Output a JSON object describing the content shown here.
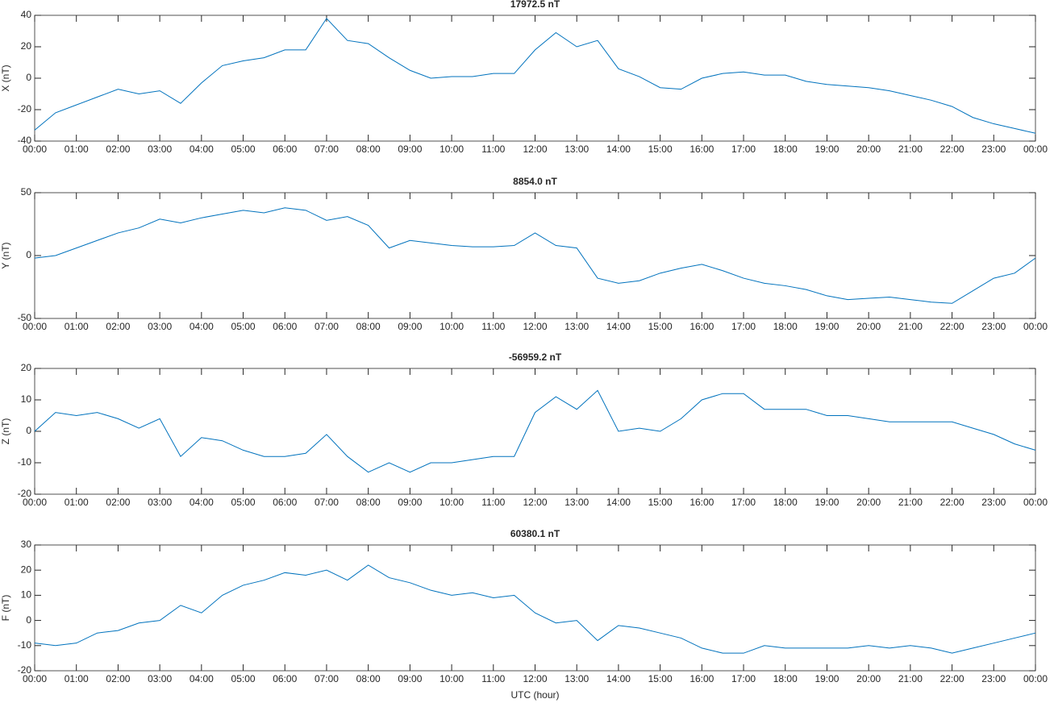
{
  "chart_data": [
    {
      "type": "line",
      "title": "17972.5 nT",
      "ylabel": "X (nT)",
      "color": "#0072bd",
      "x": [
        0,
        0.5,
        1,
        1.5,
        2,
        2.5,
        3,
        3.5,
        4,
        4.5,
        5,
        5.5,
        6,
        6.5,
        7,
        7.5,
        8,
        8.5,
        9,
        9.5,
        10,
        10.5,
        11,
        11.5,
        12,
        12.5,
        13,
        13.5,
        14,
        14.5,
        15,
        15.5,
        16,
        16.5,
        17,
        17.5,
        18,
        18.5,
        19,
        19.5,
        20,
        20.5,
        21,
        21.5,
        22,
        22.5,
        23,
        23.5,
        24
      ],
      "values": [
        -33,
        -22,
        -17,
        -12,
        -7,
        -10,
        -8,
        -16,
        -3,
        8,
        11,
        13,
        18,
        18,
        38,
        24,
        22,
        13,
        5,
        0,
        1,
        1,
        3,
        3,
        18,
        29,
        20,
        24,
        6,
        1,
        -6,
        -7,
        0,
        3,
        4,
        2,
        2,
        -2,
        -4,
        -5,
        -6,
        -8,
        -11,
        -14,
        -18,
        -25,
        -29,
        -32,
        -35
      ],
      "xlim": [
        0,
        24
      ],
      "xticks": [
        {
          "value": 0,
          "label": "00:00"
        },
        {
          "value": 1,
          "label": "01:00"
        },
        {
          "value": 2,
          "label": "02:00"
        },
        {
          "value": 3,
          "label": "03:00"
        },
        {
          "value": 4,
          "label": "04:00"
        },
        {
          "value": 5,
          "label": "05:00"
        },
        {
          "value": 6,
          "label": "06:00"
        },
        {
          "value": 7,
          "label": "07:00"
        },
        {
          "value": 8,
          "label": "08:00"
        },
        {
          "value": 9,
          "label": "09:00"
        },
        {
          "value": 10,
          "label": "10:00"
        },
        {
          "value": 11,
          "label": "11:00"
        },
        {
          "value": 12,
          "label": "12:00"
        },
        {
          "value": 13,
          "label": "13:00"
        },
        {
          "value": 14,
          "label": "14:00"
        },
        {
          "value": 15,
          "label": "15:00"
        },
        {
          "value": 16,
          "label": "16:00"
        },
        {
          "value": 17,
          "label": "17:00"
        },
        {
          "value": 18,
          "label": "18:00"
        },
        {
          "value": 19,
          "label": "19:00"
        },
        {
          "value": 20,
          "label": "20:00"
        },
        {
          "value": 21,
          "label": "21:00"
        },
        {
          "value": 22,
          "label": "22:00"
        },
        {
          "value": 23,
          "label": "23:00"
        },
        {
          "value": 24,
          "label": "00:00"
        }
      ],
      "ylim": [
        -40,
        40
      ],
      "yticks": [
        -40,
        -20,
        0,
        20,
        40
      ],
      "grid": false
    },
    {
      "type": "line",
      "title": "8854.0 nT",
      "ylabel": "Y (nT)",
      "color": "#0072bd",
      "x": [
        0,
        0.5,
        1,
        1.5,
        2,
        2.5,
        3,
        3.5,
        4,
        4.5,
        5,
        5.5,
        6,
        6.5,
        7,
        7.5,
        8,
        8.5,
        9,
        9.5,
        10,
        10.5,
        11,
        11.5,
        12,
        12.5,
        13,
        13.5,
        14,
        14.5,
        15,
        15.5,
        16,
        16.5,
        17,
        17.5,
        18,
        18.5,
        19,
        19.5,
        20,
        20.5,
        21,
        21.5,
        22,
        22.5,
        23,
        23.5,
        24
      ],
      "values": [
        -2,
        0,
        6,
        12,
        18,
        22,
        29,
        26,
        30,
        33,
        36,
        34,
        38,
        36,
        28,
        31,
        24,
        6,
        12,
        10,
        8,
        7,
        7,
        8,
        18,
        8,
        6,
        -18,
        -22,
        -20,
        -14,
        -10,
        -7,
        -12,
        -18,
        -22,
        -24,
        -27,
        -32,
        -35,
        -34,
        -33,
        -35,
        -37,
        -38,
        -28,
        -18,
        -14,
        -2
      ],
      "xlim": [
        0,
        24
      ],
      "xticks": [
        {
          "value": 0,
          "label": "00:00"
        },
        {
          "value": 1,
          "label": "01:00"
        },
        {
          "value": 2,
          "label": "02:00"
        },
        {
          "value": 3,
          "label": "03:00"
        },
        {
          "value": 4,
          "label": "04:00"
        },
        {
          "value": 5,
          "label": "05:00"
        },
        {
          "value": 6,
          "label": "06:00"
        },
        {
          "value": 7,
          "label": "07:00"
        },
        {
          "value": 8,
          "label": "08:00"
        },
        {
          "value": 9,
          "label": "09:00"
        },
        {
          "value": 10,
          "label": "10:00"
        },
        {
          "value": 11,
          "label": "11:00"
        },
        {
          "value": 12,
          "label": "12:00"
        },
        {
          "value": 13,
          "label": "13:00"
        },
        {
          "value": 14,
          "label": "14:00"
        },
        {
          "value": 15,
          "label": "15:00"
        },
        {
          "value": 16,
          "label": "16:00"
        },
        {
          "value": 17,
          "label": "17:00"
        },
        {
          "value": 18,
          "label": "18:00"
        },
        {
          "value": 19,
          "label": "19:00"
        },
        {
          "value": 20,
          "label": "20:00"
        },
        {
          "value": 21,
          "label": "21:00"
        },
        {
          "value": 22,
          "label": "22:00"
        },
        {
          "value": 23,
          "label": "23:00"
        },
        {
          "value": 24,
          "label": "00:00"
        }
      ],
      "ylim": [
        -50,
        50
      ],
      "yticks": [
        -50,
        0,
        50
      ],
      "grid": false
    },
    {
      "type": "line",
      "title": "-56959.2 nT",
      "ylabel": "Z (nT)",
      "color": "#0072bd",
      "x": [
        0,
        0.5,
        1,
        1.5,
        2,
        2.5,
        3,
        3.5,
        4,
        4.5,
        5,
        5.5,
        6,
        6.5,
        7,
        7.5,
        8,
        8.5,
        9,
        9.5,
        10,
        10.5,
        11,
        11.5,
        12,
        12.5,
        13,
        13.5,
        14,
        14.5,
        15,
        15.5,
        16,
        16.5,
        17,
        17.5,
        18,
        18.5,
        19,
        19.5,
        20,
        20.5,
        21,
        21.5,
        22,
        22.5,
        23,
        23.5,
        24
      ],
      "values": [
        0,
        6,
        5,
        6,
        4,
        1,
        4,
        -8,
        -2,
        -3,
        -6,
        -8,
        -8,
        -7,
        -1,
        -8,
        -13,
        -10,
        -13,
        -10,
        -10,
        -9,
        -8,
        -8,
        6,
        11,
        7,
        13,
        0,
        1,
        0,
        4,
        10,
        12,
        12,
        7,
        7,
        7,
        5,
        5,
        4,
        3,
        3,
        3,
        3,
        1,
        -1,
        -4,
        -6
      ],
      "xlim": [
        0,
        24
      ],
      "xticks": [
        {
          "value": 0,
          "label": "00:00"
        },
        {
          "value": 1,
          "label": "01:00"
        },
        {
          "value": 2,
          "label": "02:00"
        },
        {
          "value": 3,
          "label": "03:00"
        },
        {
          "value": 4,
          "label": "04:00"
        },
        {
          "value": 5,
          "label": "05:00"
        },
        {
          "value": 6,
          "label": "06:00"
        },
        {
          "value": 7,
          "label": "07:00"
        },
        {
          "value": 8,
          "label": "08:00"
        },
        {
          "value": 9,
          "label": "09:00"
        },
        {
          "value": 10,
          "label": "10:00"
        },
        {
          "value": 11,
          "label": "11:00"
        },
        {
          "value": 12,
          "label": "12:00"
        },
        {
          "value": 13,
          "label": "13:00"
        },
        {
          "value": 14,
          "label": "14:00"
        },
        {
          "value": 15,
          "label": "15:00"
        },
        {
          "value": 16,
          "label": "16:00"
        },
        {
          "value": 17,
          "label": "17:00"
        },
        {
          "value": 18,
          "label": "18:00"
        },
        {
          "value": 19,
          "label": "19:00"
        },
        {
          "value": 20,
          "label": "20:00"
        },
        {
          "value": 21,
          "label": "21:00"
        },
        {
          "value": 22,
          "label": "22:00"
        },
        {
          "value": 23,
          "label": "23:00"
        },
        {
          "value": 24,
          "label": "00:00"
        }
      ],
      "ylim": [
        -20,
        20
      ],
      "yticks": [
        -20,
        -10,
        0,
        10,
        20
      ],
      "grid": false
    },
    {
      "type": "line",
      "title": "60380.1 nT",
      "ylabel": "F (nT)",
      "xlabel": "UTC (hour)",
      "color": "#0072bd",
      "x": [
        0,
        0.5,
        1,
        1.5,
        2,
        2.5,
        3,
        3.5,
        4,
        4.5,
        5,
        5.5,
        6,
        6.5,
        7,
        7.5,
        8,
        8.5,
        9,
        9.5,
        10,
        10.5,
        11,
        11.5,
        12,
        12.5,
        13,
        13.5,
        14,
        14.5,
        15,
        15.5,
        16,
        16.5,
        17,
        17.5,
        18,
        18.5,
        19,
        19.5,
        20,
        20.5,
        21,
        21.5,
        22,
        22.5,
        23,
        23.5,
        24
      ],
      "values": [
        -9,
        -10,
        -9,
        -5,
        -4,
        -1,
        0,
        6,
        3,
        10,
        14,
        16,
        19,
        18,
        20,
        16,
        22,
        17,
        15,
        12,
        10,
        11,
        9,
        10,
        3,
        -1,
        0,
        -8,
        -2,
        -3,
        -5,
        -7,
        -11,
        -13,
        -13,
        -10,
        -11,
        -11,
        -11,
        -11,
        -10,
        -11,
        -10,
        -11,
        -13,
        -11,
        -9,
        -7,
        -5
      ],
      "xlim": [
        0,
        24
      ],
      "xticks": [
        {
          "value": 0,
          "label": "00:00"
        },
        {
          "value": 1,
          "label": "01:00"
        },
        {
          "value": 2,
          "label": "02:00"
        },
        {
          "value": 3,
          "label": "03:00"
        },
        {
          "value": 4,
          "label": "04:00"
        },
        {
          "value": 5,
          "label": "05:00"
        },
        {
          "value": 6,
          "label": "06:00"
        },
        {
          "value": 7,
          "label": "07:00"
        },
        {
          "value": 8,
          "label": "08:00"
        },
        {
          "value": 9,
          "label": "09:00"
        },
        {
          "value": 10,
          "label": "10:00"
        },
        {
          "value": 11,
          "label": "11:00"
        },
        {
          "value": 12,
          "label": "12:00"
        },
        {
          "value": 13,
          "label": "13:00"
        },
        {
          "value": 14,
          "label": "14:00"
        },
        {
          "value": 15,
          "label": "15:00"
        },
        {
          "value": 16,
          "label": "16:00"
        },
        {
          "value": 17,
          "label": "17:00"
        },
        {
          "value": 18,
          "label": "18:00"
        },
        {
          "value": 19,
          "label": "19:00"
        },
        {
          "value": 20,
          "label": "20:00"
        },
        {
          "value": 21,
          "label": "21:00"
        },
        {
          "value": 22,
          "label": "22:00"
        },
        {
          "value": 23,
          "label": "23:00"
        },
        {
          "value": 24,
          "label": "00:00"
        }
      ],
      "ylim": [
        -20,
        30
      ],
      "yticks": [
        -20,
        -10,
        0,
        10,
        20,
        30
      ],
      "grid": false
    }
  ]
}
